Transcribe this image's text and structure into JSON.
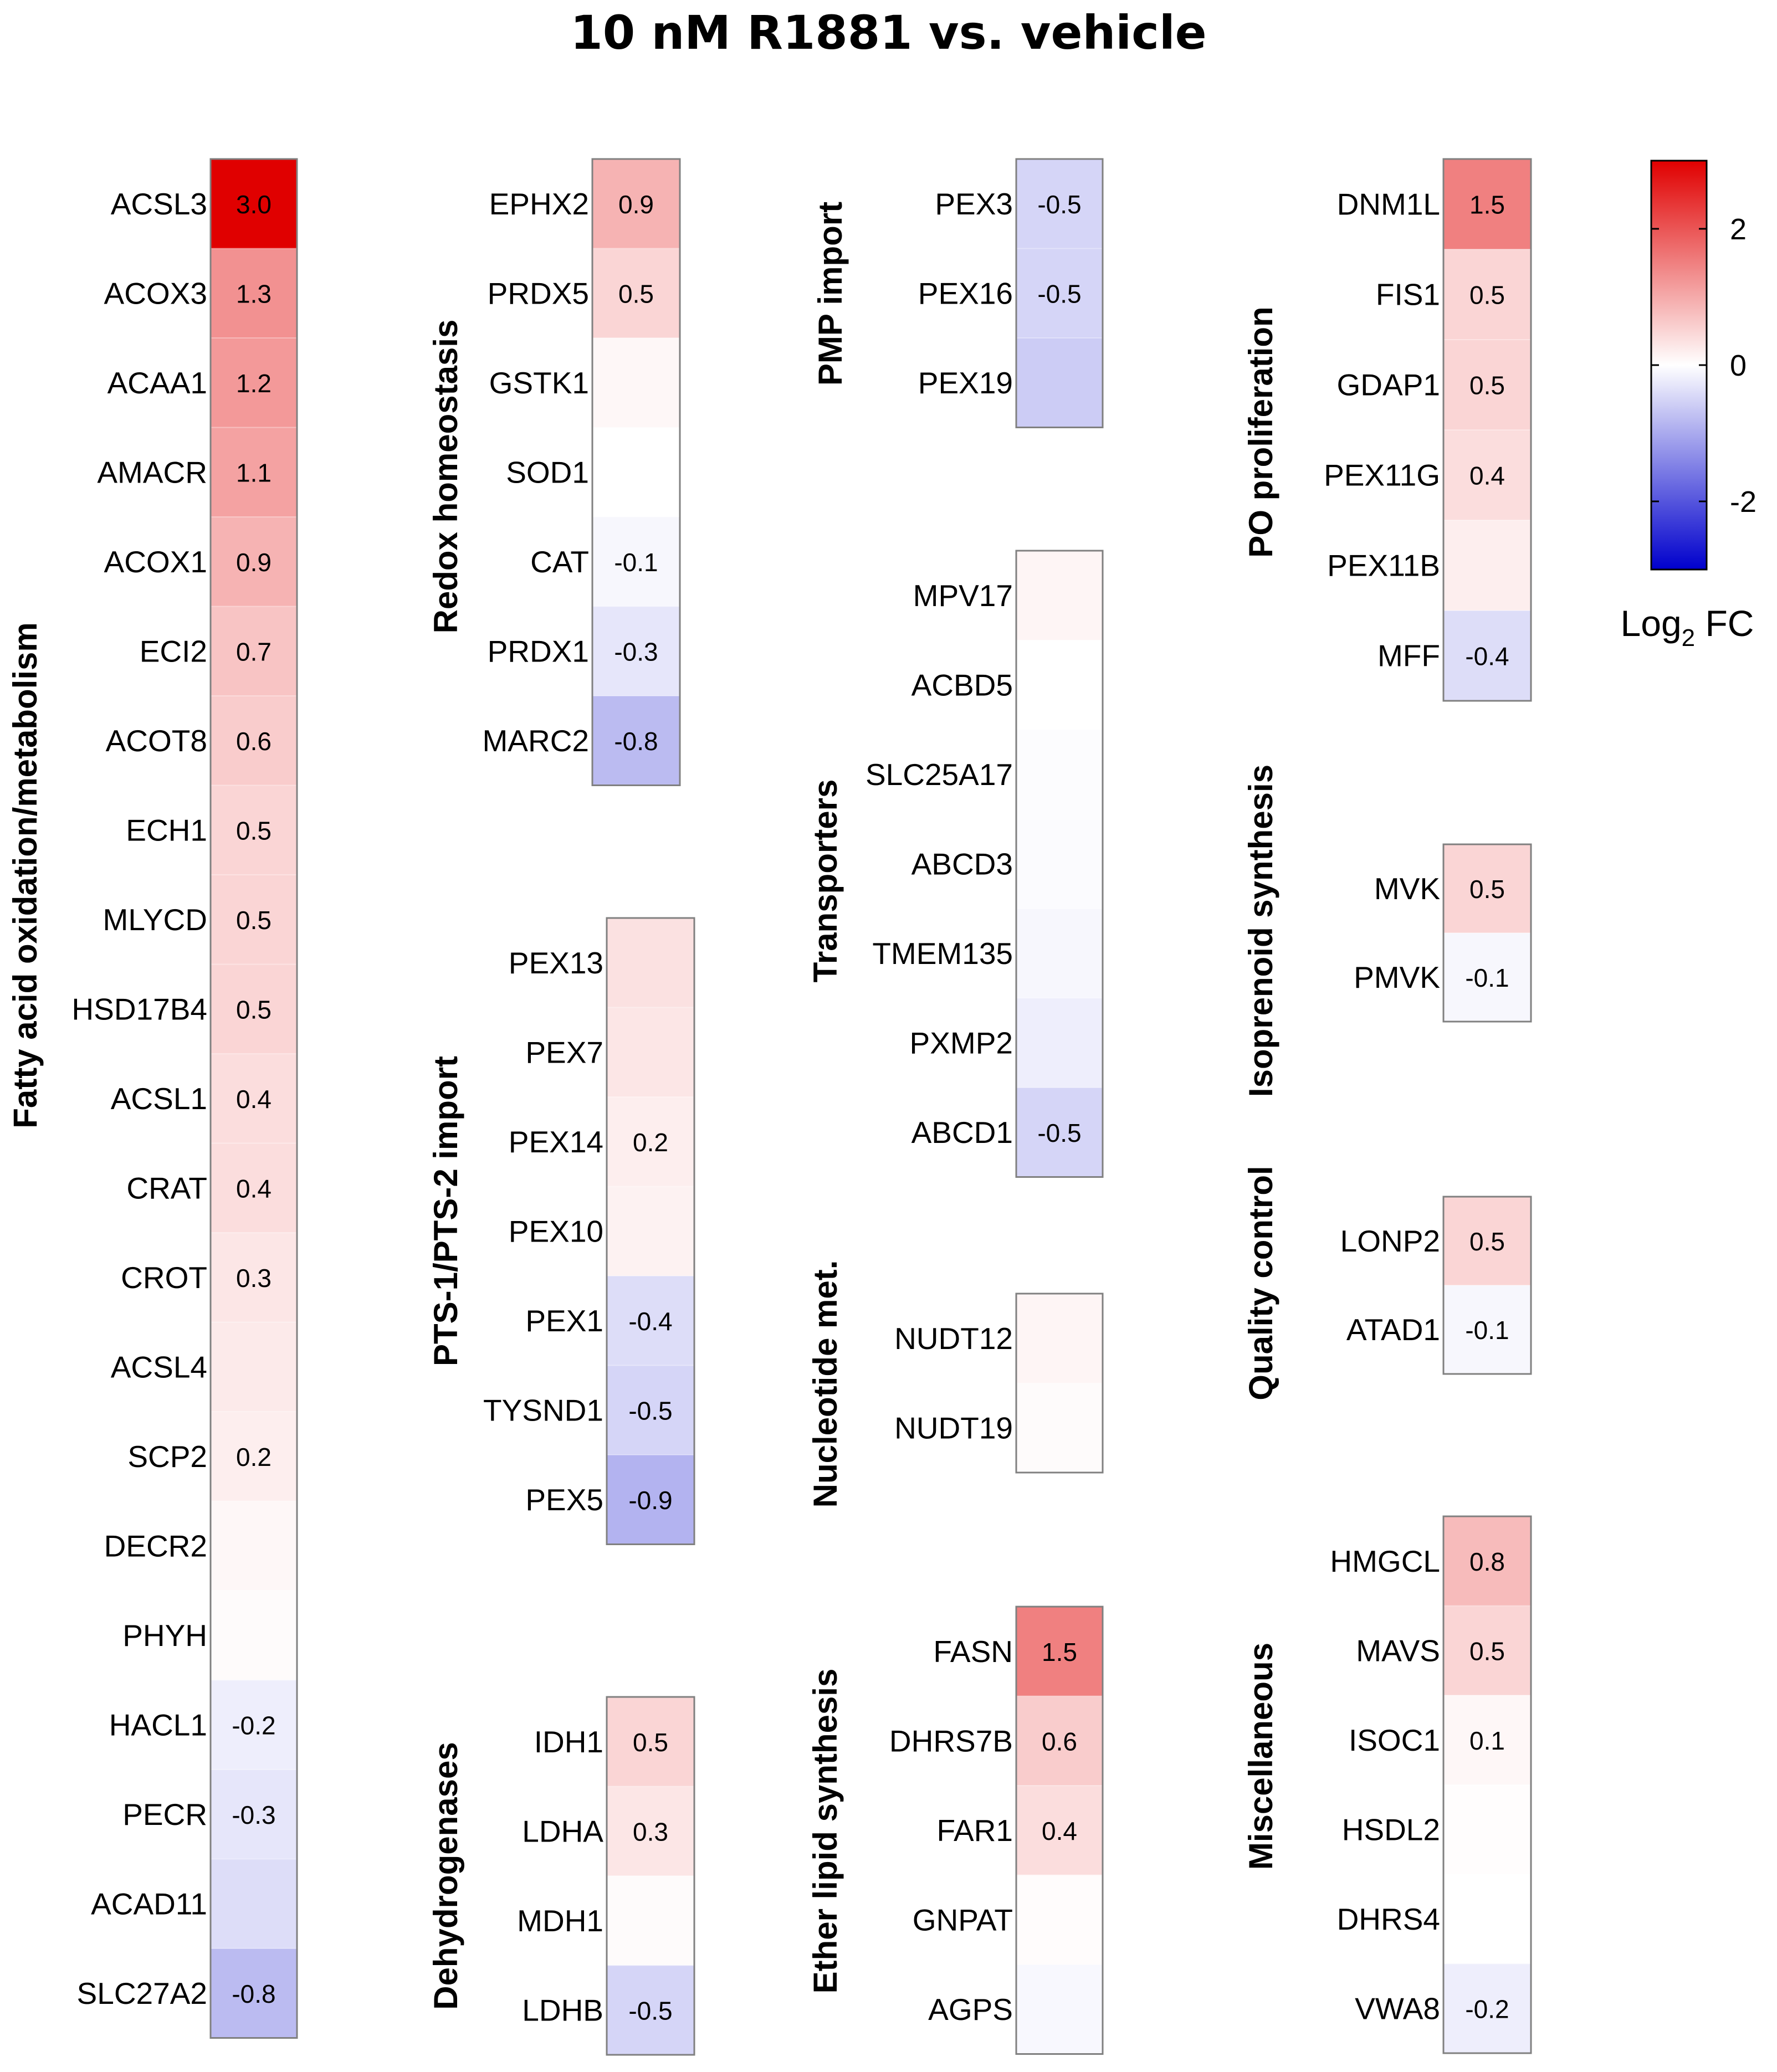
{
  "chart_data": {
    "type": "heatmap",
    "title": "10 nM R1881 vs. vehicle",
    "colorbar": {
      "label": "Log",
      "label_subscript": "2",
      "label_suffix": " FC",
      "range": [
        -3,
        3
      ],
      "ticks": [
        {
          "value": 2,
          "label": "2"
        },
        {
          "value": 0,
          "label": "0"
        },
        {
          "value": -2,
          "label": "-2"
        }
      ],
      "low_color": "#0000cc",
      "mid_color": "#ffffff",
      "high_color": "#e00000"
    },
    "groups": [
      {
        "name": "Fatty acid oxidation/metabolism",
        "genes": [
          {
            "gene": "ACSL3",
            "value": 3.0,
            "label": "3.0"
          },
          {
            "gene": "ACOX3",
            "value": 1.3,
            "label": "1.3"
          },
          {
            "gene": "ACAA1",
            "value": 1.2,
            "label": "1.2"
          },
          {
            "gene": "AMACR",
            "value": 1.1,
            "label": "1.1"
          },
          {
            "gene": "ACOX1",
            "value": 0.9,
            "label": "0.9"
          },
          {
            "gene": "ECI2",
            "value": 0.7,
            "label": "0.7"
          },
          {
            "gene": "ACOT8",
            "value": 0.6,
            "label": "0.6"
          },
          {
            "gene": "ECH1",
            "value": 0.5,
            "label": "0.5"
          },
          {
            "gene": "MLYCD",
            "value": 0.5,
            "label": "0.5"
          },
          {
            "gene": "HSD17B4",
            "value": 0.5,
            "label": "0.5"
          },
          {
            "gene": "ACSL1",
            "value": 0.4,
            "label": "0.4"
          },
          {
            "gene": "CRAT",
            "value": 0.4,
            "label": "0.4"
          },
          {
            "gene": "CROT",
            "value": 0.3,
            "label": "0.3"
          },
          {
            "gene": "ACSL4",
            "value": 0.25,
            "label": ""
          },
          {
            "gene": "SCP2",
            "value": 0.2,
            "label": "0.2"
          },
          {
            "gene": "DECR2",
            "value": 0.1,
            "label": ""
          },
          {
            "gene": "PHYH",
            "value": 0.05,
            "label": ""
          },
          {
            "gene": "HACL1",
            "value": -0.2,
            "label": "-0.2"
          },
          {
            "gene": "PECR",
            "value": -0.3,
            "label": "-0.3"
          },
          {
            "gene": "ACAD11",
            "value": -0.4,
            "label": ""
          },
          {
            "gene": "SLC27A2",
            "value": -0.8,
            "label": "-0.8"
          }
        ]
      },
      {
        "name": "Redox homeostasis",
        "genes": [
          {
            "gene": "EPHX2",
            "value": 0.9,
            "label": "0.9"
          },
          {
            "gene": "PRDX5",
            "value": 0.5,
            "label": "0.5"
          },
          {
            "gene": "GSTK1",
            "value": 0.1,
            "label": ""
          },
          {
            "gene": "SOD1",
            "value": 0.0,
            "label": ""
          },
          {
            "gene": "CAT",
            "value": -0.1,
            "label": "-0.1"
          },
          {
            "gene": "PRDX1",
            "value": -0.3,
            "label": "-0.3"
          },
          {
            "gene": "MARC2",
            "value": -0.8,
            "label": "-0.8"
          }
        ]
      },
      {
        "name": "PTS-1/PTS-2 import",
        "genes": [
          {
            "gene": "PEX13",
            "value": 0.35,
            "label": ""
          },
          {
            "gene": "PEX7",
            "value": 0.3,
            "label": ""
          },
          {
            "gene": "PEX14",
            "value": 0.2,
            "label": "0.2"
          },
          {
            "gene": "PEX10",
            "value": 0.15,
            "label": ""
          },
          {
            "gene": "PEX1",
            "value": -0.4,
            "label": "-0.4"
          },
          {
            "gene": "TYSND1",
            "value": -0.5,
            "label": "-0.5"
          },
          {
            "gene": "PEX5",
            "value": -0.9,
            "label": "-0.9"
          }
        ]
      },
      {
        "name": "Dehydrogenases",
        "genes": [
          {
            "gene": "IDH1",
            "value": 0.5,
            "label": "0.5"
          },
          {
            "gene": "LDHA",
            "value": 0.3,
            "label": "0.3"
          },
          {
            "gene": "MDH1",
            "value": 0.05,
            "label": ""
          },
          {
            "gene": "LDHB",
            "value": -0.5,
            "label": "-0.5"
          }
        ]
      },
      {
        "name": "PMP import",
        "genes": [
          {
            "gene": "PEX3",
            "value": -0.5,
            "label": "-0.5"
          },
          {
            "gene": "PEX16",
            "value": -0.5,
            "label": "-0.5"
          },
          {
            "gene": "PEX19",
            "value": -0.6,
            "label": ""
          }
        ]
      },
      {
        "name": "Transporters",
        "genes": [
          {
            "gene": "MPV17",
            "value": 0.12,
            "label": ""
          },
          {
            "gene": "ACBD5",
            "value": 0.0,
            "label": ""
          },
          {
            "gene": "SLC25A17",
            "value": -0.03,
            "label": ""
          },
          {
            "gene": "ABCD3",
            "value": -0.05,
            "label": ""
          },
          {
            "gene": "TMEM135",
            "value": -0.1,
            "label": ""
          },
          {
            "gene": "PXMP2",
            "value": -0.2,
            "label": ""
          },
          {
            "gene": "ABCD1",
            "value": -0.5,
            "label": "-0.5"
          }
        ]
      },
      {
        "name": "Nucleotide met.",
        "genes": [
          {
            "gene": "NUDT12",
            "value": 0.12,
            "label": ""
          },
          {
            "gene": "NUDT19",
            "value": 0.05,
            "label": ""
          }
        ]
      },
      {
        "name": "Ether lipid synthesis",
        "genes": [
          {
            "gene": "FASN",
            "value": 1.5,
            "label": "1.5"
          },
          {
            "gene": "DHRS7B",
            "value": 0.6,
            "label": "0.6"
          },
          {
            "gene": "FAR1",
            "value": 0.4,
            "label": "0.4"
          },
          {
            "gene": "GNPAT",
            "value": 0.03,
            "label": ""
          },
          {
            "gene": "AGPS",
            "value": -0.08,
            "label": ""
          }
        ]
      },
      {
        "name": "PO proliferation",
        "genes": [
          {
            "gene": "DNM1L",
            "value": 1.5,
            "label": "1.5"
          },
          {
            "gene": "FIS1",
            "value": 0.5,
            "label": "0.5"
          },
          {
            "gene": "GDAP1",
            "value": 0.5,
            "label": "0.5"
          },
          {
            "gene": "PEX11G",
            "value": 0.4,
            "label": "0.4"
          },
          {
            "gene": "PEX11B",
            "value": 0.2,
            "label": ""
          },
          {
            "gene": "MFF",
            "value": -0.4,
            "label": "-0.4"
          }
        ]
      },
      {
        "name": "Isoprenoid synthesis",
        "genes": [
          {
            "gene": "MVK",
            "value": 0.5,
            "label": "0.5"
          },
          {
            "gene": "PMVK",
            "value": -0.1,
            "label": "-0.1"
          }
        ]
      },
      {
        "name": "Quality control",
        "genes": [
          {
            "gene": "LONP2",
            "value": 0.5,
            "label": "0.5"
          },
          {
            "gene": "ATAD1",
            "value": -0.1,
            "label": "-0.1"
          }
        ]
      },
      {
        "name": "Miscellaneous",
        "genes": [
          {
            "gene": "HMGCL",
            "value": 0.8,
            "label": "0.8"
          },
          {
            "gene": "MAVS",
            "value": 0.5,
            "label": "0.5"
          },
          {
            "gene": "ISOC1",
            "value": 0.1,
            "label": "0.1"
          },
          {
            "gene": "HSDL2",
            "value": 0.02,
            "label": ""
          },
          {
            "gene": "DHRS4",
            "value": 0.0,
            "label": ""
          },
          {
            "gene": "VWA8",
            "value": -0.2,
            "label": "-0.2"
          }
        ]
      }
    ]
  }
}
